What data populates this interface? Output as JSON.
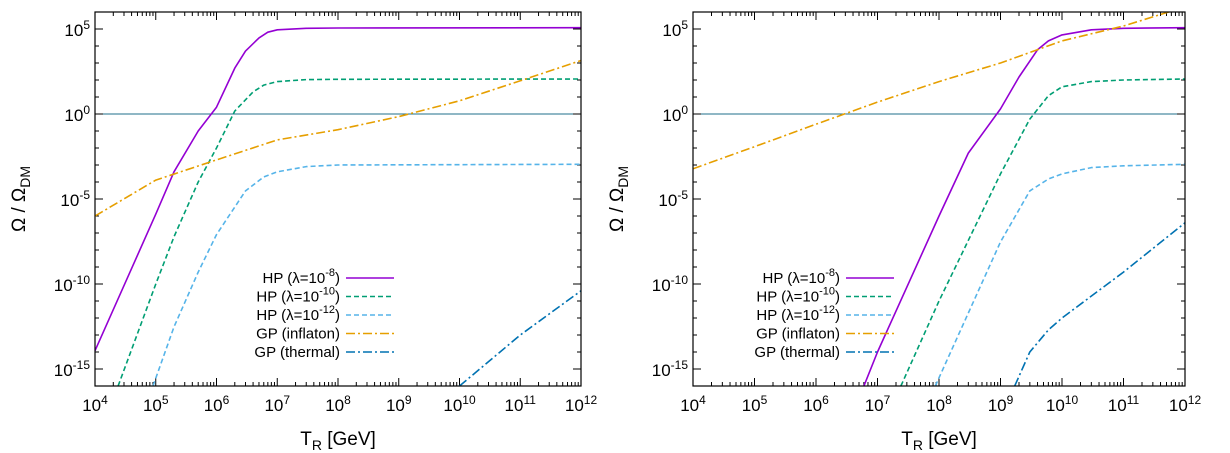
{
  "chart_data": [
    {
      "type": "line",
      "xlabel": "T_R [GeV]",
      "ylabel": "Ω / Ω_DM",
      "xscale": "log",
      "yscale": "log",
      "xlim": [
        10000.0,
        1000000000000.0
      ],
      "ylim": [
        1e-16,
        1000000.0
      ],
      "xticks": [
        "10^4",
        "10^5",
        "10^6",
        "10^7",
        "10^8",
        "10^9",
        "10^10",
        "10^11",
        "10^12"
      ],
      "yticks": [
        "10^-15",
        "10^-10",
        "10^-5",
        "10^0",
        "10^5"
      ],
      "hline": {
        "y": 1,
        "color": "#1f6f8b"
      },
      "legend_position": "bottom-left",
      "series": [
        {
          "name": "HP (λ=10^-8)",
          "color": "#9400d3",
          "dash": "solid",
          "points": [
            [
              10000.0,
              1.2e-14
            ],
            [
              100000.0,
              1.3e-06
            ],
            [
              200000.0,
              0.0004
            ],
            [
              500000.0,
              0.1
            ],
            [
              1000000.0,
              2.5
            ],
            [
              2000000.0,
              500
            ],
            [
              3000000.0,
              5000
            ],
            [
              5000000.0,
              30000
            ],
            [
              7000000.0,
              65000
            ],
            [
              10000000.0,
              90000
            ],
            [
              30000000.0,
              110000
            ],
            [
              100000000.0,
              115000
            ],
            [
              1000000000000.0,
              120000
            ]
          ]
        },
        {
          "name": "HP (λ=10^-10)",
          "color": "#009e73",
          "dash": "dashed",
          "points": [
            [
              24000.0,
              1e-16
            ],
            [
              100000.0,
              1e-10
            ],
            [
              200000.0,
              6e-08
            ],
            [
              500000.0,
              0.0001
            ],
            [
              1000000.0,
              0.01
            ],
            [
              2000000.0,
              1.5
            ],
            [
              4000000.0,
              20
            ],
            [
              6000000.0,
              50
            ],
            [
              10000000.0,
              80
            ],
            [
              30000000.0,
              105
            ],
            [
              100000000.0,
              110
            ],
            [
              1000000000000.0,
              115
            ]
          ]
        },
        {
          "name": "HP (λ=10^-12)",
          "color": "#56b4e9",
          "dash": "dashed",
          "points": [
            [
              90000.0,
              1e-16
            ],
            [
              200000.0,
              3e-13
            ],
            [
              500000.0,
              5e-10
            ],
            [
              1000000.0,
              8e-08
            ],
            [
              3000000.0,
              3e-05
            ],
            [
              6000000.0,
              0.0002
            ],
            [
              10000000.0,
              0.0004
            ],
            [
              30000000.0,
              0.0008
            ],
            [
              100000000.0,
              0.001
            ],
            [
              1000000000000.0,
              0.0011
            ]
          ]
        },
        {
          "name": "GP (inflaton)",
          "color": "#e69f00",
          "dash": "dashdot",
          "points": [
            [
              10000.0,
              1e-06
            ],
            [
              100000.0,
              0.00013
            ],
            [
              1000000.0,
              0.002
            ],
            [
              10000000.0,
              0.03
            ],
            [
              100000000.0,
              0.12
            ],
            [
              1000000000.0,
              0.7
            ],
            [
              10000000000.0,
              6
            ],
            [
              100000000000.0,
              90
            ],
            [
              1000000000000.0,
              1400
            ]
          ]
        },
        {
          "name": "GP (thermal)",
          "color": "#0072b2",
          "dash": "dashdot",
          "points": [
            [
              10000000000.0,
              1e-16
            ],
            [
              100000000000.0,
              1e-13
            ],
            [
              1000000000000.0,
              4e-11
            ]
          ]
        }
      ]
    },
    {
      "type": "line",
      "xlabel": "T_R [GeV]",
      "ylabel": "Ω / Ω_DM",
      "xscale": "log",
      "yscale": "log",
      "xlim": [
        10000.0,
        1000000000000.0
      ],
      "ylim": [
        1e-16,
        1000000.0
      ],
      "xticks": [
        "10^4",
        "10^5",
        "10^6",
        "10^7",
        "10^8",
        "10^9",
        "10^10",
        "10^11",
        "10^12"
      ],
      "yticks": [
        "10^-15",
        "10^-10",
        "10^-5",
        "10^0",
        "10^5"
      ],
      "hline": {
        "y": 1,
        "color": "#1f6f8b"
      },
      "legend_position": "bottom-left",
      "series": [
        {
          "name": "HP (λ=10^-8)",
          "color": "#9400d3",
          "dash": "solid",
          "points": [
            [
              6000000.0,
              1e-16
            ],
            [
              10000000.0,
              1e-14
            ],
            [
              100000000.0,
              1e-06
            ],
            [
              300000000.0,
              0.005
            ],
            [
              1000000000.0,
              2
            ],
            [
              2000000000.0,
              150
            ],
            [
              4000000000.0,
              6000
            ],
            [
              6000000000.0,
              20000
            ],
            [
              10000000000.0,
              45000
            ],
            [
              30000000000.0,
              90000
            ],
            [
              100000000000.0,
              110000
            ],
            [
              1000000000000.0,
              120000
            ]
          ]
        },
        {
          "name": "HP (λ=10^-10)",
          "color": "#009e73",
          "dash": "dashed",
          "points": [
            [
              24000000.0,
              1e-16
            ],
            [
              100000000.0,
              1e-11
            ],
            [
              1000000000.0,
              0.0003
            ],
            [
              3000000000.0,
              0.5
            ],
            [
              6000000000.0,
              12
            ],
            [
              10000000000.0,
              40
            ],
            [
              30000000000.0,
              80
            ],
            [
              100000000000.0,
              100
            ],
            [
              1000000000000.0,
              115
            ]
          ]
        },
        {
          "name": "HP (λ=10^-12)",
          "color": "#56b4e9",
          "dash": "dashed",
          "points": [
            [
              87000000.0,
              1e-16
            ],
            [
              1000000000.0,
              3e-08
            ],
            [
              3000000000.0,
              3e-05
            ],
            [
              6000000000.0,
              0.00015
            ],
            [
              10000000000.0,
              0.0003
            ],
            [
              30000000000.0,
              0.0007
            ],
            [
              100000000000.0,
              0.0009
            ],
            [
              1000000000000.0,
              0.0011
            ]
          ]
        },
        {
          "name": "GP (inflaton)",
          "color": "#e69f00",
          "dash": "dashdot",
          "points": [
            [
              10000.0,
              0.0006
            ],
            [
              100000.0,
              0.012
            ],
            [
              1000000.0,
              0.25
            ],
            [
              10000000.0,
              5
            ],
            [
              100000000.0,
              80
            ],
            [
              1000000000.0,
              1000
            ],
            [
              10000000000.0,
              20000
            ],
            [
              100000000000.0,
              150000
            ],
            [
              1000000000000.0,
              2000000
            ]
          ]
        },
        {
          "name": "GP (thermal)",
          "color": "#0072b2",
          "dash": "dashdot",
          "points": [
            [
              1700000000.0,
              1e-16
            ],
            [
              3000000000.0,
              1e-14
            ],
            [
              6000000000.0,
              2e-13
            ],
            [
              10000000000.0,
              1e-12
            ],
            [
              100000000000.0,
              5e-10
            ],
            [
              1000000000000.0,
              4e-07
            ]
          ]
        }
      ]
    }
  ]
}
